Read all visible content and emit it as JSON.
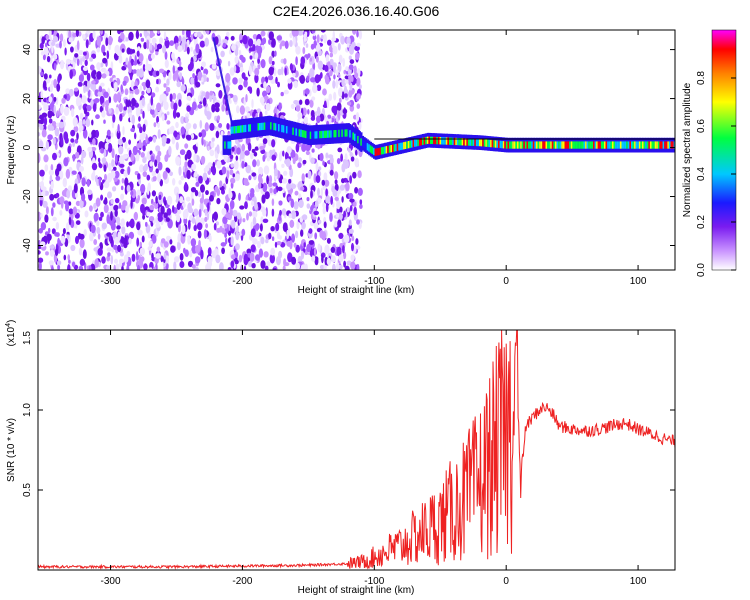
{
  "page": {
    "title": "C2E4.2026.036.16.40.G06"
  },
  "chart_data": [
    {
      "type": "heatmap",
      "xlabel": "Height of straight line (km)",
      "ylabel": "Frequency (Hz)",
      "xlim": [
        -355,
        128
      ],
      "ylim": [
        -50,
        48
      ],
      "xticks": [
        -300,
        -200,
        -100,
        0,
        100
      ],
      "yticks": [
        -40,
        -20,
        0,
        20,
        40
      ],
      "colorbar": {
        "label": "Normalized spectral amplitude",
        "range": [
          0.0,
          1.0
        ],
        "ticks": [
          0.0,
          0.2,
          0.4,
          0.6,
          0.8
        ],
        "colors": [
          "#ffffff",
          "#c993ff",
          "#7a1cf0",
          "#1a1aff",
          "#00c8ff",
          "#00ff40",
          "#ffff00",
          "#ff8000",
          "#ff0000",
          "#ff00ff"
        ]
      },
      "ridge": [
        {
          "x": -210,
          "y": 7
        },
        {
          "x": -180,
          "y": 9
        },
        {
          "x": -150,
          "y": 5
        },
        {
          "x": -120,
          "y": 6
        },
        {
          "x": -100,
          "y": -2
        },
        {
          "x": -60,
          "y": 3
        },
        {
          "x": -20,
          "y": 2
        },
        {
          "x": 0,
          "y": 1
        },
        {
          "x": 50,
          "y": 1
        },
        {
          "x": 128,
          "y": 1
        }
      ]
    },
    {
      "type": "line",
      "xlabel": "Height of straight line (km)",
      "ylabel": "SNR (10 * v/v)",
      "y_multiplier": "(x10",
      "y_multiplier_exp": "4",
      "y_multiplier_close": ")",
      "xlim": [
        -355,
        128
      ],
      "ylim": [
        0,
        1.5
      ],
      "xticks": [
        -300,
        -200,
        -100,
        0,
        100
      ],
      "yticks": [
        0.5,
        1.0,
        1.5
      ],
      "ytick_labels": [
        "0.5",
        "1.0",
        "1.5"
      ],
      "color": "#ee2222",
      "series": [
        {
          "x": [
            -355,
            -300,
            -250,
            -200,
            -150,
            -120,
            -110,
            -100,
            -90,
            -80,
            -70,
            -60,
            -50,
            -40,
            -30,
            -20,
            -10,
            0,
            5,
            8,
            10,
            15,
            20,
            25,
            30,
            35,
            40,
            50,
            60,
            70,
            80,
            90,
            100,
            110,
            120,
            128
          ],
          "y": [
            0.02,
            0.02,
            0.02,
            0.025,
            0.03,
            0.04,
            0.05,
            0.08,
            0.12,
            0.15,
            0.2,
            0.25,
            0.3,
            0.38,
            0.45,
            0.55,
            0.7,
            0.85,
            0.92,
            1.5,
            0.5,
            0.9,
            0.95,
            1.0,
            1.02,
            0.98,
            0.9,
            0.88,
            0.87,
            0.88,
            0.9,
            0.92,
            0.88,
            0.85,
            0.82,
            0.8
          ]
        }
      ]
    }
  ]
}
